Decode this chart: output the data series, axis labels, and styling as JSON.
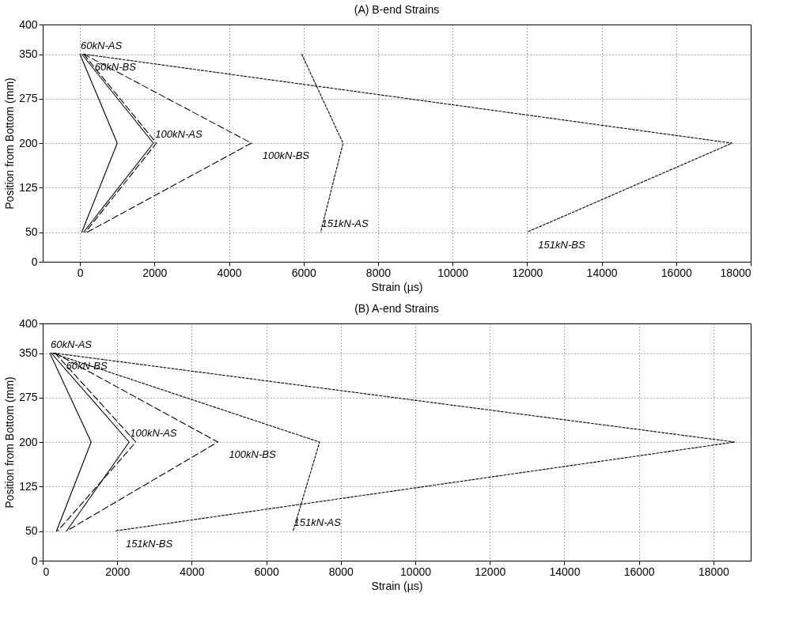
{
  "chart_data": [
    {
      "type": "line",
      "title": "(A) B-end Strains",
      "xlabel": "Strain (µs)",
      "ylabel": "Position from Bottom (mm)",
      "xlim": [
        -1000,
        18000
      ],
      "xticks": [
        0,
        2000,
        4000,
        6000,
        8000,
        10000,
        12000,
        14000,
        16000,
        18000
      ],
      "ylim": [
        0,
        400
      ],
      "yticks": [
        0,
        50,
        125,
        200,
        275,
        350,
        400
      ],
      "grid": true,
      "legend": false,
      "marker": "none",
      "series": [
        {
          "color": "#000000",
          "line_style": "solid",
          "x": [
            0,
            1000,
            50
          ],
          "values": [
            350,
            200,
            50
          ]
        },
        {
          "color": "#000000",
          "line_style": "dashed",
          "x": [
            100,
            2050,
            150
          ],
          "values": [
            350,
            200,
            50
          ]
        },
        {
          "color": "#000000",
          "line_style": "solid",
          "x": [
            50,
            1970,
            100
          ],
          "values": [
            350,
            200,
            50
          ]
        },
        {
          "color": "#000000",
          "line_style": "dashed",
          "x": [
            100,
            4600,
            200
          ],
          "values": [
            350,
            200,
            50
          ]
        },
        {
          "color": "#000000",
          "line_style": "dotted",
          "x": [
            5950,
            7060,
            6460
          ],
          "values": [
            350,
            200,
            50
          ]
        },
        {
          "color": "#000000",
          "line_style": "dotted",
          "x": [
            100,
            17500,
            12000
          ],
          "values": [
            350,
            200,
            50
          ]
        }
      ],
      "annotations": [
        {
          "text": "60kN-AS",
          "x": 0,
          "y": 350
        },
        {
          "text": "60kN-BS",
          "x": 100,
          "y": 350
        },
        {
          "text": "100kN-AS",
          "x": 2000,
          "y": 200
        },
        {
          "text": "100kN-BS",
          "x": 4600,
          "y": 200
        },
        {
          "text": "151kN-AS",
          "x": 6460,
          "y": 50
        },
        {
          "text": "151kN-BS",
          "x": 12000,
          "y": 50
        }
      ]
    },
    {
      "type": "line",
      "title": "(B) A-end Strains",
      "xlabel": "Strain (µs)",
      "ylabel": "Position from Bottom (mm)",
      "xlim": [
        0,
        19000
      ],
      "xticks": [
        0,
        2000,
        4000,
        6000,
        8000,
        10000,
        12000,
        14000,
        16000,
        18000
      ],
      "ylim": [
        0,
        400
      ],
      "yticks": [
        0,
        50,
        125,
        200,
        275,
        350,
        400
      ],
      "grid": true,
      "legend": false,
      "marker": "none",
      "series": [
        {
          "color": "#000000",
          "line_style": "solid",
          "x": [
            190,
            1300,
            370
          ],
          "values": [
            350,
            200,
            50
          ]
        },
        {
          "color": "#000000",
          "line_style": "dashed",
          "x": [
            330,
            2500,
            400
          ],
          "values": [
            350,
            200,
            50
          ]
        },
        {
          "color": "#000000",
          "line_style": "solid",
          "x": [
            230,
            2320,
            640
          ],
          "values": [
            350,
            200,
            50
          ]
        },
        {
          "color": "#000000",
          "line_style": "dashed",
          "x": [
            330,
            4700,
            640
          ],
          "values": [
            350,
            200,
            50
          ]
        },
        {
          "color": "#000000",
          "line_style": "dotted",
          "x": [
            250,
            7430,
            6720
          ],
          "values": [
            350,
            200,
            50
          ]
        },
        {
          "color": "#000000",
          "line_style": "dotted",
          "x": [
            300,
            18570,
            1930
          ],
          "values": [
            350,
            200,
            50
          ]
        }
      ],
      "annotations": [
        {
          "text": "60kN-AS",
          "x": 190,
          "y": 350
        },
        {
          "text": "60kN-BS",
          "x": 330,
          "y": 350
        },
        {
          "text": "100kN-AS",
          "x": 2320,
          "y": 200
        },
        {
          "text": "100kN-BS",
          "x": 4700,
          "y": 200
        },
        {
          "text": "151kN-AS",
          "x": 6720,
          "y": 50
        },
        {
          "text": "151kN-BS",
          "x": 1930,
          "y": 50
        }
      ]
    }
  ]
}
